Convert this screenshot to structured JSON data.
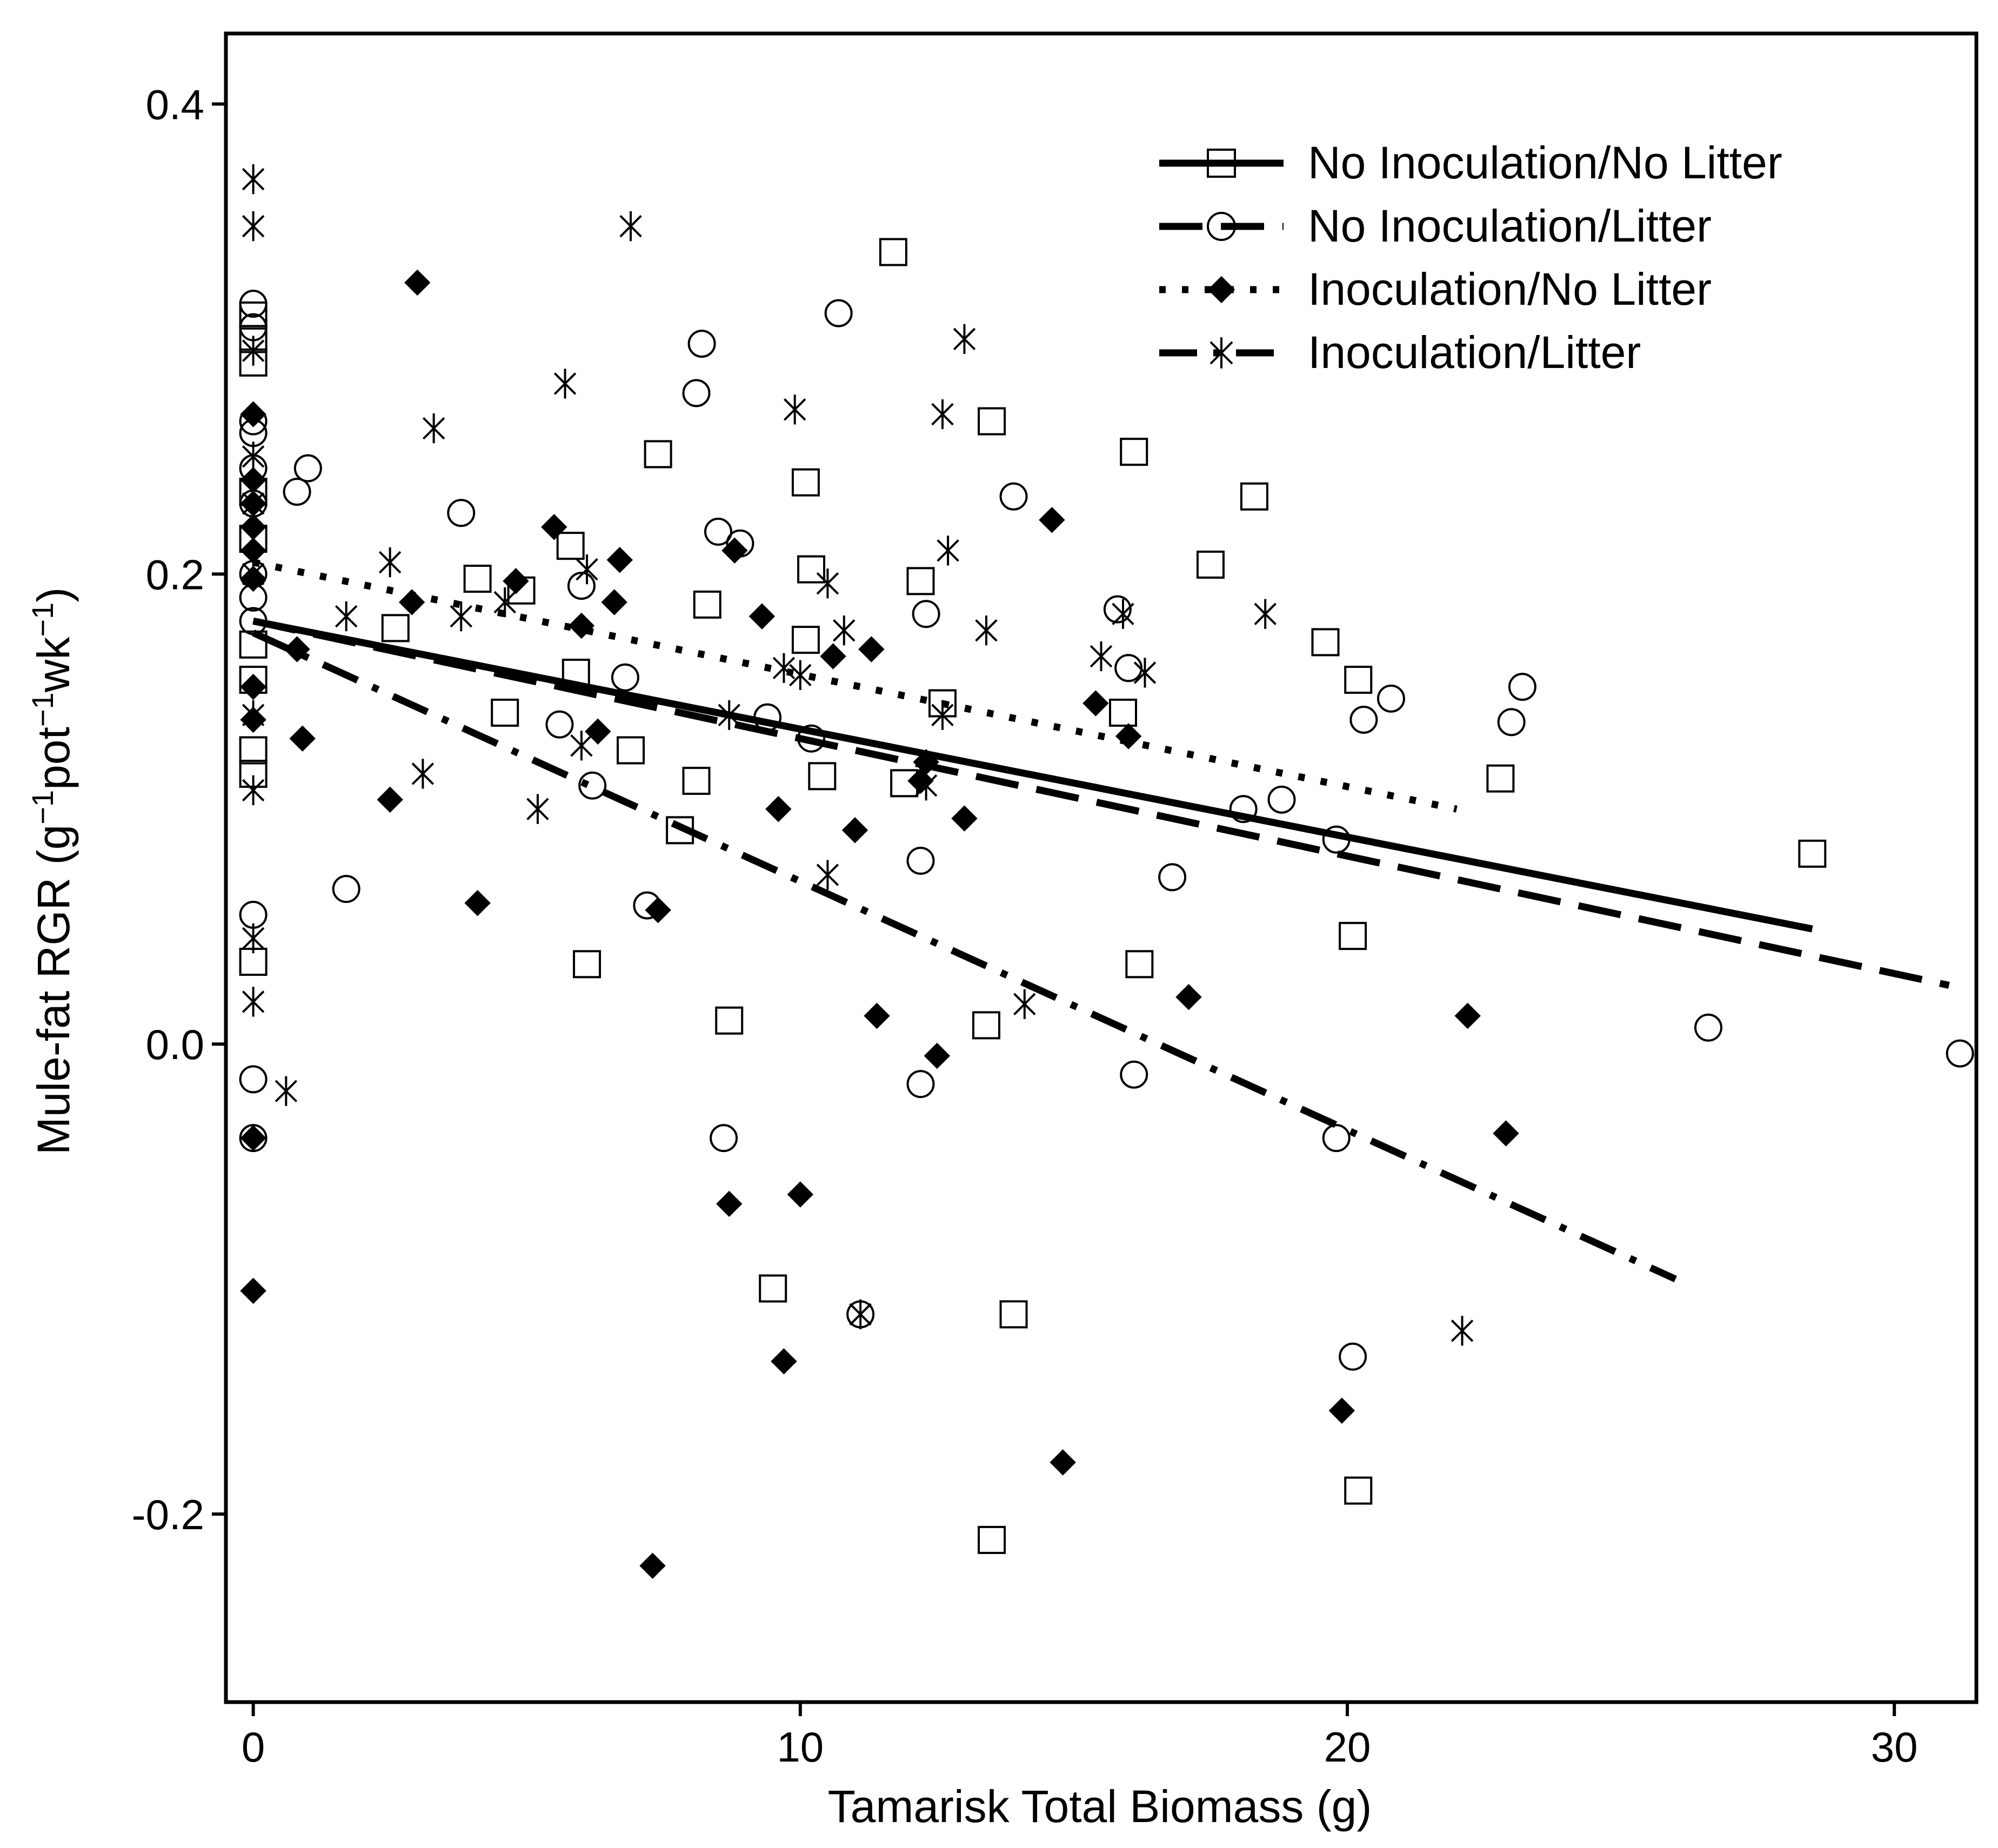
{
  "chart_data": {
    "type": "scatter",
    "title": "",
    "xlabel": "Tamarisk Total Biomass (g)",
    "ylabel_parts": [
      "Mule-fat RGR (g",
      "−1",
      "pot",
      "−1",
      "wk",
      "−1",
      ")"
    ],
    "xlim": [
      -0.5,
      31.5
    ],
    "ylim": [
      -0.28,
      0.43
    ],
    "xticks": [
      0,
      10,
      20,
      30
    ],
    "xtick_labels": [
      "0",
      "10",
      "20",
      "30"
    ],
    "yticks": [
      -0.2,
      0.0,
      0.2,
      0.4
    ],
    "ytick_labels": [
      "-0.2",
      "0.0",
      "0.2",
      "0.4"
    ],
    "grid": false,
    "legend_position": "top-right",
    "series": [
      {
        "name": "No Inoculation/No Litter",
        "marker": "open-square",
        "line_style": "solid",
        "fit": {
          "x0": 0,
          "y0": 0.18,
          "x1": 28.5,
          "y1": 0.049
        },
        "points": [
          [
            0,
            0.31
          ],
          [
            0,
            0.3
          ],
          [
            0,
            0.29
          ],
          [
            0,
            0.235
          ],
          [
            0,
            0.215
          ],
          [
            0,
            0.17
          ],
          [
            0,
            0.155
          ],
          [
            0,
            0.125
          ],
          [
            0,
            0.115
          ],
          [
            0,
            0.035
          ],
          [
            2.6,
            0.177
          ],
          [
            4.1,
            0.198
          ],
          [
            4.6,
            0.141
          ],
          [
            4.9,
            0.193
          ],
          [
            5.8,
            0.212
          ],
          [
            5.9,
            0.158
          ],
          [
            6.1,
            0.034
          ],
          [
            6.9,
            0.125
          ],
          [
            7.4,
            0.251
          ],
          [
            7.8,
            0.091
          ],
          [
            8.1,
            0.112
          ],
          [
            8.3,
            0.187
          ],
          [
            8.7,
            0.01
          ],
          [
            9.5,
            -0.104
          ],
          [
            10.1,
            0.239
          ],
          [
            10.1,
            0.172
          ],
          [
            10.2,
            0.202
          ],
          [
            10.4,
            0.114
          ],
          [
            11.7,
            0.337
          ],
          [
            11.9,
            0.111
          ],
          [
            12.2,
            0.197
          ],
          [
            12.6,
            0.145
          ],
          [
            13.4,
            0.008
          ],
          [
            13.5,
            -0.211
          ],
          [
            13.5,
            0.265
          ],
          [
            13.9,
            -0.115
          ],
          [
            15.9,
            0.141
          ],
          [
            16.1,
            0.252
          ],
          [
            16.2,
            0.034
          ],
          [
            17.5,
            0.204
          ],
          [
            18.3,
            0.233
          ],
          [
            19.6,
            0.171
          ],
          [
            20.1,
            0.046
          ],
          [
            20.2,
            0.155
          ],
          [
            20.2,
            -0.19
          ],
          [
            22.8,
            0.113
          ],
          [
            28.5,
            0.081
          ]
        ]
      },
      {
        "name": "No Inoculation/Litter",
        "marker": "open-circle",
        "line_style": "long-dash",
        "fit": {
          "x0": 0,
          "y0": 0.18,
          "x1": 31,
          "y1": 0.025
        },
        "points": [
          [
            0,
            0.315
          ],
          [
            0,
            0.305
          ],
          [
            0,
            0.265
          ],
          [
            0,
            0.26
          ],
          [
            0,
            0.245
          ],
          [
            0,
            0.23
          ],
          [
            0,
            0.2
          ],
          [
            0,
            0.19
          ],
          [
            0,
            0.18
          ],
          [
            0,
            0.055
          ],
          [
            0,
            -0.015
          ],
          [
            0,
            -0.04
          ],
          [
            0.8,
            0.235
          ],
          [
            1.0,
            0.245
          ],
          [
            1.7,
            0.066
          ],
          [
            3.8,
            0.226
          ],
          [
            5.6,
            0.136
          ],
          [
            6.0,
            0.195
          ],
          [
            6.2,
            0.11
          ],
          [
            6.8,
            0.156
          ],
          [
            7.2,
            0.059
          ],
          [
            8.1,
            0.277
          ],
          [
            8.2,
            0.298
          ],
          [
            8.5,
            0.218
          ],
          [
            8.6,
            -0.04
          ],
          [
            8.9,
            0.213
          ],
          [
            9.4,
            0.139
          ],
          [
            10.2,
            0.13
          ],
          [
            10.7,
            0.311
          ],
          [
            11.1,
            -0.115
          ],
          [
            12.2,
            -0.017
          ],
          [
            12.2,
            0.078
          ],
          [
            12.3,
            0.183
          ],
          [
            13.9,
            0.233
          ],
          [
            15.8,
            0.185
          ],
          [
            16.0,
            0.16
          ],
          [
            16.1,
            -0.013
          ],
          [
            16.8,
            0.071
          ],
          [
            18.1,
            0.1
          ],
          [
            18.8,
            0.104
          ],
          [
            19.8,
            0.087
          ],
          [
            19.8,
            -0.04
          ],
          [
            20.1,
            -0.133
          ],
          [
            20.3,
            0.138
          ],
          [
            20.8,
            0.147
          ],
          [
            23.0,
            0.137
          ],
          [
            23.2,
            0.152
          ],
          [
            26.6,
            0.007
          ],
          [
            31.2,
            -0.004
          ]
        ]
      },
      {
        "name": "Inoculation/No Litter",
        "marker": "filled-diamond",
        "line_style": "dotted",
        "fit": {
          "x0": 0,
          "y0": 0.205,
          "x1": 22,
          "y1": 0.1
        },
        "points": [
          [
            0,
            0.268
          ],
          [
            0,
            0.24
          ],
          [
            0,
            0.23
          ],
          [
            0,
            0.22
          ],
          [
            0,
            0.21
          ],
          [
            0,
            0.198
          ],
          [
            0,
            0.152
          ],
          [
            0,
            0.138
          ],
          [
            0,
            -0.04
          ],
          [
            0,
            -0.105
          ],
          [
            0.8,
            0.168
          ],
          [
            0.9,
            0.13
          ],
          [
            2.5,
            0.104
          ],
          [
            2.9,
            0.188
          ],
          [
            3.0,
            0.324
          ],
          [
            4.1,
            0.06
          ],
          [
            4.8,
            0.197
          ],
          [
            5.5,
            0.22
          ],
          [
            6.0,
            0.178
          ],
          [
            6.3,
            0.133
          ],
          [
            6.6,
            0.188
          ],
          [
            6.7,
            0.206
          ],
          [
            7.3,
            -0.222
          ],
          [
            7.4,
            0.057
          ],
          [
            8.7,
            -0.068
          ],
          [
            8.8,
            0.21
          ],
          [
            9.3,
            0.182
          ],
          [
            9.6,
            0.1
          ],
          [
            9.7,
            -0.135
          ],
          [
            10.0,
            -0.064
          ],
          [
            10.6,
            0.165
          ],
          [
            11.0,
            0.091
          ],
          [
            11.3,
            0.168
          ],
          [
            11.4,
            0.012
          ],
          [
            12.2,
            0.112
          ],
          [
            12.3,
            0.12
          ],
          [
            12.5,
            -0.005
          ],
          [
            13.0,
            0.096
          ],
          [
            14.6,
            0.223
          ],
          [
            14.8,
            -0.178
          ],
          [
            15.4,
            0.145
          ],
          [
            16.0,
            0.131
          ],
          [
            17.1,
            0.02
          ],
          [
            19.9,
            -0.156
          ],
          [
            22.2,
            0.012
          ],
          [
            22.9,
            -0.038
          ]
        ]
      },
      {
        "name": "Inoculation/Litter",
        "marker": "asterisk",
        "line_style": "dash-dot",
        "fit": {
          "x0": 0,
          "y0": 0.175,
          "x1": 26,
          "y1": -0.1
        },
        "points": [
          [
            0,
            0.368
          ],
          [
            0,
            0.348
          ],
          [
            0,
            0.295
          ],
          [
            0,
            0.25
          ],
          [
            0,
            0.23
          ],
          [
            0,
            0.2
          ],
          [
            0,
            0.14
          ],
          [
            0,
            0.108
          ],
          [
            0,
            0.045
          ],
          [
            0,
            0.018
          ],
          [
            0.6,
            -0.02
          ],
          [
            1.7,
            0.182
          ],
          [
            2.5,
            0.205
          ],
          [
            3.1,
            0.115
          ],
          [
            3.3,
            0.262
          ],
          [
            3.8,
            0.182
          ],
          [
            4.6,
            0.188
          ],
          [
            5.2,
            0.1
          ],
          [
            5.7,
            0.281
          ],
          [
            6.0,
            0.127
          ],
          [
            6.1,
            0.202
          ],
          [
            6.9,
            0.348
          ],
          [
            8.7,
            0.14
          ],
          [
            9.7,
            0.16
          ],
          [
            9.9,
            0.27
          ],
          [
            10.0,
            0.157
          ],
          [
            10.5,
            0.196
          ],
          [
            10.5,
            0.072
          ],
          [
            10.8,
            0.176
          ],
          [
            11.1,
            -0.115
          ],
          [
            12.3,
            0.11
          ],
          [
            12.6,
            0.268
          ],
          [
            12.6,
            0.14
          ],
          [
            12.7,
            0.21
          ],
          [
            13.0,
            0.3
          ],
          [
            13.4,
            0.176
          ],
          [
            14.1,
            0.017
          ],
          [
            15.5,
            0.165
          ],
          [
            15.9,
            0.183
          ],
          [
            16.3,
            0.158
          ],
          [
            18.5,
            0.183
          ],
          [
            22.1,
            -0.122
          ]
        ]
      }
    ]
  }
}
